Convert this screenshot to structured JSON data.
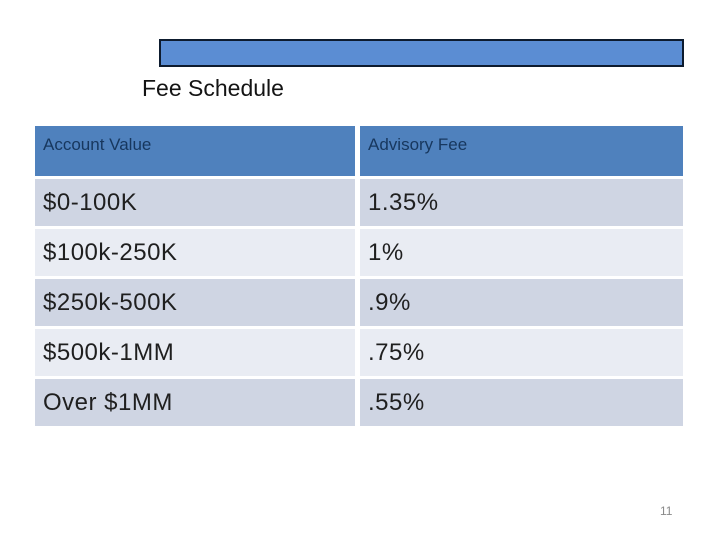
{
  "slide": {
    "title": "Fee Schedule",
    "page_number": "11"
  },
  "table": {
    "columns": [
      "Account Value",
      "Advisory Fee"
    ],
    "rows": [
      {
        "account_value": "$0-100K",
        "advisory_fee": "1.35%"
      },
      {
        "account_value": "$100k-250K",
        "advisory_fee": "1%"
      },
      {
        "account_value": "$250k-500K",
        "advisory_fee": ".9%"
      },
      {
        "account_value": "$500k-1MM",
        "advisory_fee": ".75%"
      },
      {
        "account_value": "Over $1MM",
        "advisory_fee": ".55%"
      }
    ]
  },
  "colors": {
    "title_bar_fill": "#5B8DD3",
    "title_bar_border": "#0D1B2E",
    "table_header_fill": "#4F81BD",
    "table_header_text": "#17375E",
    "row_band_dark": "#CFD5E3",
    "row_band_light": "#E9ECF3",
    "body_text": "#1F1F1F",
    "page_number_text": "#8A8A8A"
  }
}
